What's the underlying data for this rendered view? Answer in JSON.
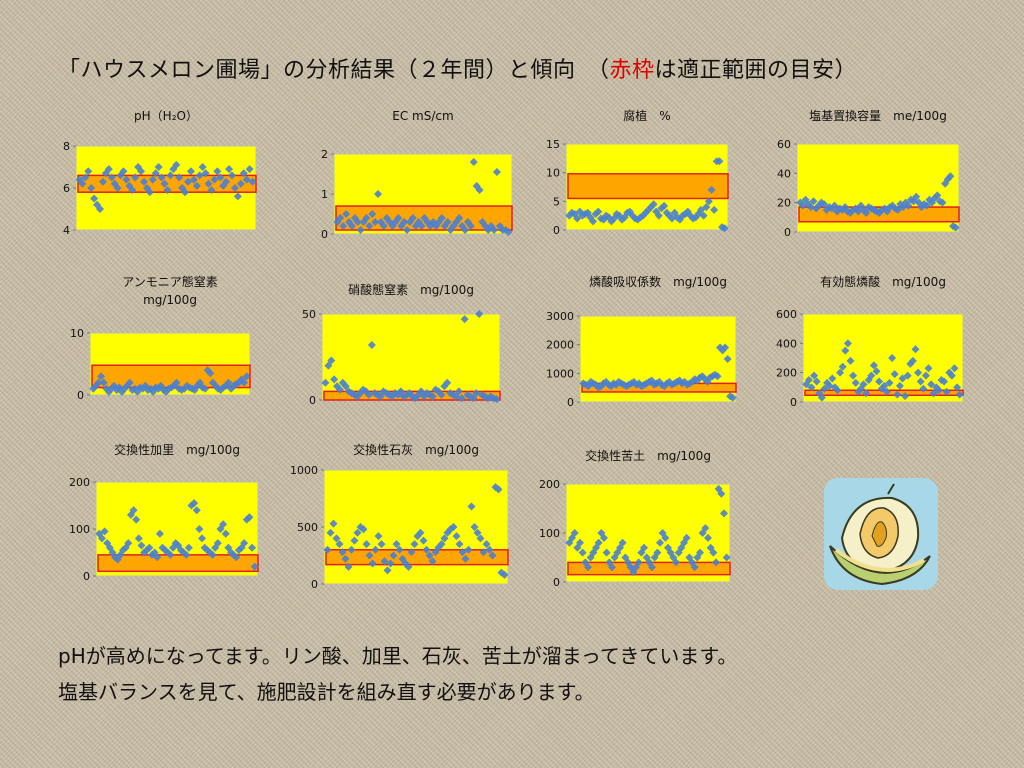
{
  "header": {
    "part1": "「ハウスメロン圃場」の分析結果（２年間）と傾向　（",
    "red": "赤枠",
    "part2": "は適正範囲の目安）"
  },
  "footer": {
    "line1": "pHが高めになってます。リン酸、加里、石灰、苦土が溜まってきています。",
    "line2": "塩基バランスを見て、施肥設計を組み直す必要があります。"
  },
  "colors": {
    "plot_bg": "#ffff00",
    "range_fill": "#ffa500",
    "range_border": "#e02020",
    "marker": "#4a7fd0"
  },
  "chart_data": [
    {
      "id": "ph",
      "type": "scatter",
      "title": [
        "pH（H₂O）"
      ],
      "ylim": [
        4,
        8
      ],
      "yticks": [
        4,
        6,
        8
      ],
      "range": [
        5.8,
        6.6
      ],
      "n": 60,
      "values": [
        6.4,
        6.2,
        6.5,
        6.8,
        6.0,
        5.5,
        5.2,
        5.0,
        6.3,
        6.7,
        6.9,
        6.5,
        6.2,
        6.0,
        6.6,
        6.8,
        6.4,
        6.1,
        5.9,
        6.5,
        7.0,
        6.8,
        6.3,
        6.0,
        5.8,
        6.4,
        6.7,
        7.0,
        6.5,
        6.2,
        5.9,
        6.6,
        6.9,
        7.1,
        6.5,
        6.0,
        5.8,
        6.3,
        6.8,
        6.4,
        6.1,
        6.6,
        7.0,
        6.7,
        6.2,
        5.9,
        6.4,
        6.8,
        6.5,
        6.1,
        6.3,
        6.9,
        6.6,
        6.0,
        5.6,
        6.2,
        6.7,
        6.4,
        6.9,
        6.3
      ]
    },
    {
      "id": "ec",
      "type": "scatter",
      "title": [
        "EC mS/cm"
      ],
      "ylim": [
        0,
        2
      ],
      "yticks": [
        0,
        1,
        2
      ],
      "range": [
        0.1,
        0.7
      ],
      "n": 60,
      "values": [
        0.3,
        0.4,
        0.2,
        0.5,
        0.3,
        0.2,
        0.4,
        0.3,
        0.1,
        0.3,
        0.4,
        0.2,
        0.5,
        0.3,
        1.0,
        0.3,
        0.2,
        0.4,
        0.3,
        0.2,
        0.3,
        0.4,
        0.2,
        0.3,
        0.1,
        0.3,
        0.4,
        0.2,
        0.3,
        0.2,
        0.4,
        0.3,
        0.2,
        0.3,
        0.2,
        0.3,
        0.4,
        0.2,
        0.3,
        0.1,
        0.2,
        0.3,
        0.4,
        0.2,
        0.1,
        0.3,
        0.2,
        1.8,
        1.2,
        1.1,
        0.3,
        0.2,
        0.1,
        0.2,
        0.1,
        1.55,
        0.2,
        0.1,
        0.1,
        0.05
      ]
    },
    {
      "id": "humus",
      "type": "scatter",
      "title": [
        "腐植　%"
      ],
      "ylim": [
        0,
        15
      ],
      "yticks": [
        0,
        5,
        10,
        15
      ],
      "range": [
        5.5,
        9.8
      ],
      "n": 60,
      "values": [
        2.5,
        3,
        2.8,
        2,
        3.2,
        2.5,
        2.8,
        3,
        2.2,
        1.5,
        2.8,
        3.2,
        2,
        1.8,
        2.5,
        2.2,
        1.5,
        2,
        2.8,
        2.5,
        1.8,
        2.2,
        3,
        3.2,
        2.5,
        2,
        1.8,
        2.2,
        2.5,
        3,
        3.5,
        4,
        4.5,
        3.2,
        2.5,
        3.8,
        4.2,
        3,
        2.5,
        2,
        3,
        2.2,
        1.8,
        2.5,
        2.8,
        3.2,
        2.5,
        2,
        2.2,
        2.8,
        3.5,
        2.5,
        4,
        5,
        7,
        3.5,
        12,
        12,
        0.5,
        0.3
      ]
    },
    {
      "id": "cec",
      "type": "scatter",
      "title": [
        "塩基置換容量　me/100g"
      ],
      "ylim": [
        0,
        60
      ],
      "yticks": [
        0,
        20,
        40,
        60
      ],
      "range": [
        7,
        17
      ],
      "n": 60,
      "values": [
        20,
        18,
        22,
        19,
        17,
        21,
        16,
        18,
        20,
        19,
        15,
        17,
        16,
        18,
        14,
        16,
        15,
        17,
        14,
        13,
        15,
        16,
        14,
        18,
        15,
        13,
        17,
        16,
        15,
        14,
        13,
        15,
        16,
        14,
        17,
        18,
        16,
        15,
        19,
        17,
        20,
        18,
        22,
        21,
        24,
        20,
        17,
        19,
        18,
        22,
        20,
        23,
        25,
        21,
        20,
        33,
        36,
        38,
        4,
        3
      ]
    },
    {
      "id": "nh4",
      "type": "scatter",
      "title": [
        "アンモニア態窒素",
        "mg/100g"
      ],
      "ylim": [
        0,
        10
      ],
      "yticks": [
        0,
        10
      ],
      "range": [
        1.2,
        4.8
      ],
      "n": 60,
      "values": [
        1,
        1.5,
        2,
        3,
        2,
        1,
        0.5,
        1,
        1.5,
        0.8,
        1.2,
        0.5,
        1,
        1.5,
        2,
        0.8,
        1,
        0.5,
        1.2,
        1,
        1.5,
        0.8,
        1,
        0.5,
        1.2,
        1,
        1.5,
        0.8,
        0.5,
        1,
        1.2,
        1.5,
        2,
        1,
        0.8,
        1,
        1.5,
        1.2,
        1,
        0.8,
        1.5,
        2,
        1.2,
        1,
        4,
        3.5,
        2,
        1.5,
        1,
        0.8,
        1.2,
        1.5,
        2,
        1,
        1.5,
        1.8,
        2,
        2.5,
        2,
        3
      ]
    },
    {
      "id": "no3",
      "type": "scatter",
      "title": [
        "硝酸態窒素　mg/100g"
      ],
      "ylim": [
        0,
        50
      ],
      "yticks": [
        0,
        50
      ],
      "range": [
        0,
        5
      ],
      "n": 60,
      "values": [
        10,
        20,
        23,
        12,
        8,
        6,
        10,
        8,
        5,
        4,
        3,
        2,
        4,
        6,
        5,
        3,
        32,
        4,
        3,
        2,
        5,
        4,
        3,
        2,
        4,
        3,
        5,
        2,
        3,
        4,
        2,
        1,
        3,
        5,
        2,
        4,
        3,
        2,
        6,
        5,
        3,
        8,
        10,
        4,
        3,
        2,
        5,
        1,
        47,
        3,
        2,
        1,
        4,
        50,
        3,
        2,
        1,
        2,
        1,
        0.5
      ]
    },
    {
      "id": "absorb",
      "type": "scatter",
      "title": [
        "燐酸吸収係数　mg/100g"
      ],
      "ylim": [
        0,
        3000
      ],
      "yticks": [
        0,
        1000,
        2000,
        3000
      ],
      "range": [
        350,
        650
      ],
      "n": 60,
      "values": [
        650,
        600,
        550,
        700,
        650,
        600,
        500,
        550,
        650,
        700,
        600,
        550,
        650,
        600,
        700,
        650,
        600,
        550,
        600,
        650,
        700,
        600,
        650,
        550,
        600,
        650,
        700,
        750,
        600,
        650,
        700,
        600,
        550,
        650,
        700,
        600,
        650,
        700,
        750,
        650,
        700,
        600,
        650,
        700,
        800,
        750,
        850,
        900,
        800,
        700,
        850,
        900,
        950,
        900,
        1900,
        1800,
        1900,
        1500,
        200,
        150
      ]
    },
    {
      "id": "p",
      "type": "scatter",
      "title": [
        "有効態燐酸　mg/100g"
      ],
      "ylim": [
        0,
        600
      ],
      "yticks": [
        0,
        200,
        400,
        600
      ],
      "range": [
        50,
        80
      ],
      "n": 60,
      "values": [
        120,
        150,
        100,
        180,
        140,
        60,
        30,
        90,
        130,
        110,
        160,
        100,
        80,
        200,
        240,
        350,
        400,
        280,
        180,
        130,
        70,
        90,
        120,
        60,
        150,
        180,
        250,
        210,
        140,
        90,
        110,
        70,
        130,
        300,
        190,
        50,
        110,
        160,
        40,
        180,
        260,
        280,
        360,
        200,
        140,
        90,
        180,
        230,
        120,
        60,
        100,
        80,
        150,
        140,
        70,
        200,
        180,
        230,
        100,
        50
      ]
    },
    {
      "id": "k",
      "type": "scatter",
      "title": [
        "交換性加里　mg/100g"
      ],
      "ylim": [
        0,
        200
      ],
      "yticks": [
        0,
        100,
        200
      ],
      "range": [
        10,
        45
      ],
      "n": 60,
      "values": [
        90,
        80,
        95,
        70,
        60,
        50,
        40,
        35,
        45,
        55,
        60,
        70,
        130,
        140,
        120,
        80,
        65,
        50,
        55,
        60,
        45,
        50,
        40,
        90,
        60,
        55,
        50,
        45,
        60,
        70,
        65,
        55,
        50,
        45,
        60,
        150,
        155,
        140,
        100,
        80,
        60,
        55,
        50,
        45,
        60,
        70,
        100,
        110,
        90,
        60,
        50,
        45,
        40,
        55,
        60,
        70,
        120,
        125,
        60,
        20
      ]
    },
    {
      "id": "ca",
      "type": "scatter",
      "title": [
        "交換性石灰　mg/100g"
      ],
      "ylim": [
        0,
        1000
      ],
      "yticks": [
        0,
        500,
        1000
      ],
      "range": [
        170,
        300
      ],
      "n": 60,
      "values": [
        300,
        450,
        530,
        400,
        350,
        280,
        220,
        150,
        300,
        380,
        450,
        500,
        480,
        350,
        250,
        180,
        300,
        420,
        350,
        200,
        120,
        180,
        250,
        350,
        300,
        220,
        180,
        150,
        280,
        350,
        420,
        450,
        380,
        300,
        250,
        200,
        280,
        320,
        350,
        400,
        450,
        480,
        500,
        420,
        350,
        280,
        220,
        300,
        680,
        500,
        450,
        400,
        280,
        350,
        300,
        250,
        850,
        830,
        100,
        80
      ]
    },
    {
      "id": "mg",
      "type": "scatter",
      "title": [
        "交換性苦土　mg/100g"
      ],
      "ylim": [
        0,
        200
      ],
      "yticks": [
        0,
        100,
        200
      ],
      "range": [
        15,
        40
      ],
      "n": 60,
      "values": [
        80,
        90,
        100,
        70,
        80,
        60,
        40,
        30,
        50,
        60,
        70,
        80,
        100,
        90,
        60,
        40,
        30,
        50,
        60,
        70,
        80,
        50,
        40,
        30,
        20,
        30,
        40,
        60,
        70,
        50,
        40,
        30,
        50,
        60,
        80,
        100,
        90,
        70,
        60,
        50,
        40,
        60,
        70,
        80,
        90,
        50,
        40,
        30,
        50,
        60,
        100,
        110,
        90,
        70,
        60,
        40,
        190,
        180,
        140,
        50
      ]
    }
  ]
}
